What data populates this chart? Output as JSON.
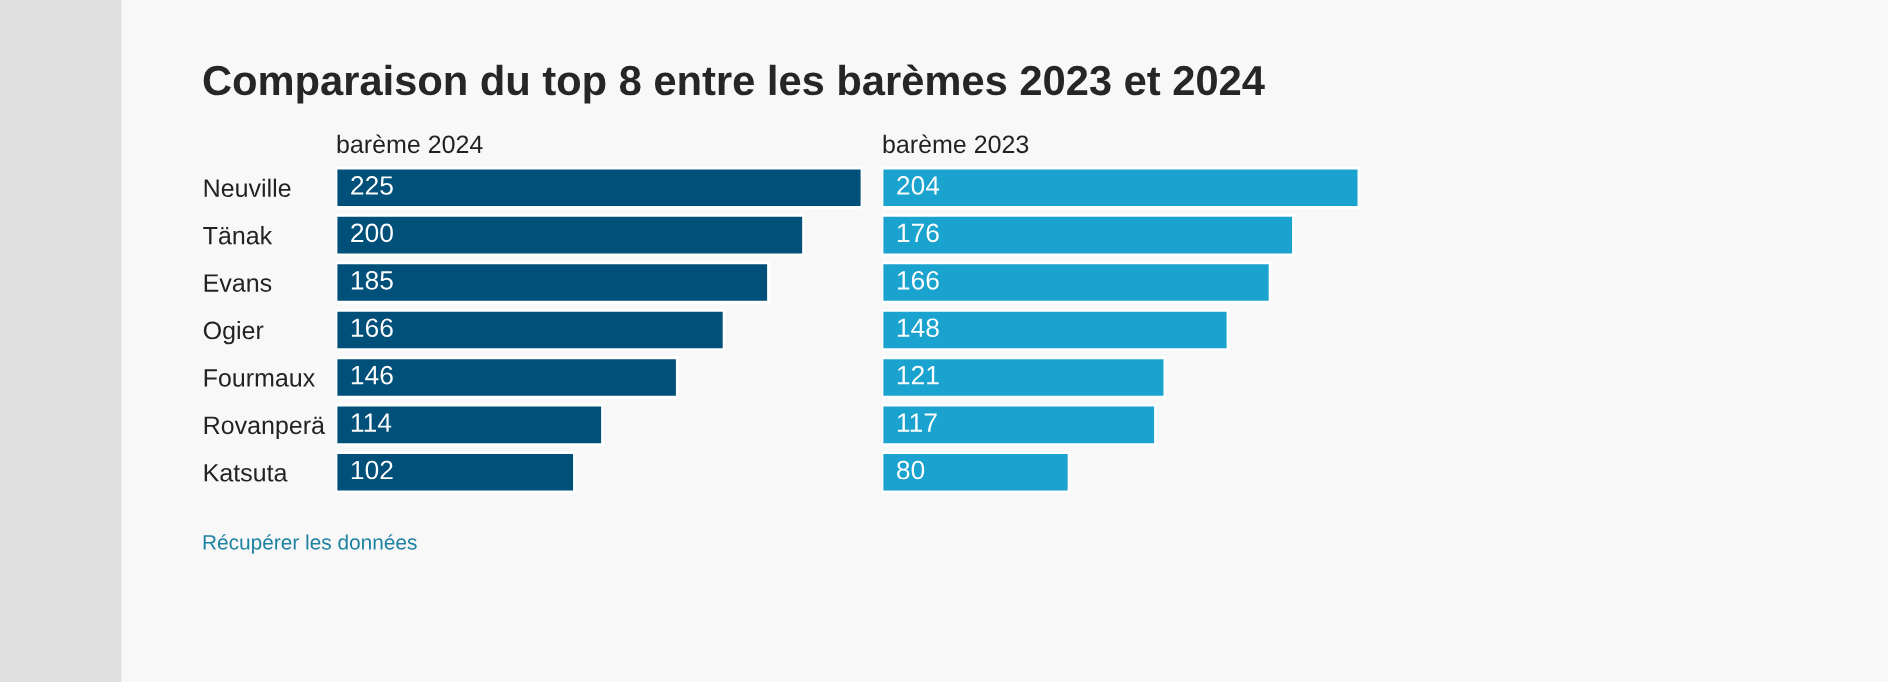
{
  "chart_data": [
    {
      "type": "bar",
      "orientation": "horizontal",
      "title": "Comparaison du top 8 entre les barèmes 2023 et 2024",
      "subtitle": "barème 2024",
      "categories": [
        "Neuville",
        "Tänak",
        "Evans",
        "Ogier",
        "Fourmaux",
        "Rovanperä",
        "Katsuta"
      ],
      "values": [
        225,
        200,
        185,
        166,
        146,
        114,
        102
      ],
      "color": "#00507a",
      "data_labels": true,
      "tick_labels": "y",
      "annotations": [
        "Récupérer les données"
      ]
    },
    {
      "type": "bar",
      "orientation": "horizontal",
      "subtitle": "barème 2023",
      "categories": [
        null,
        null,
        null,
        null,
        null,
        null,
        null
      ],
      "values": [
        204,
        176,
        166,
        148,
        121,
        117,
        80
      ],
      "color": "#1ba3d0",
      "data_labels": true,
      "tick_labels": false
    }
  ]
}
